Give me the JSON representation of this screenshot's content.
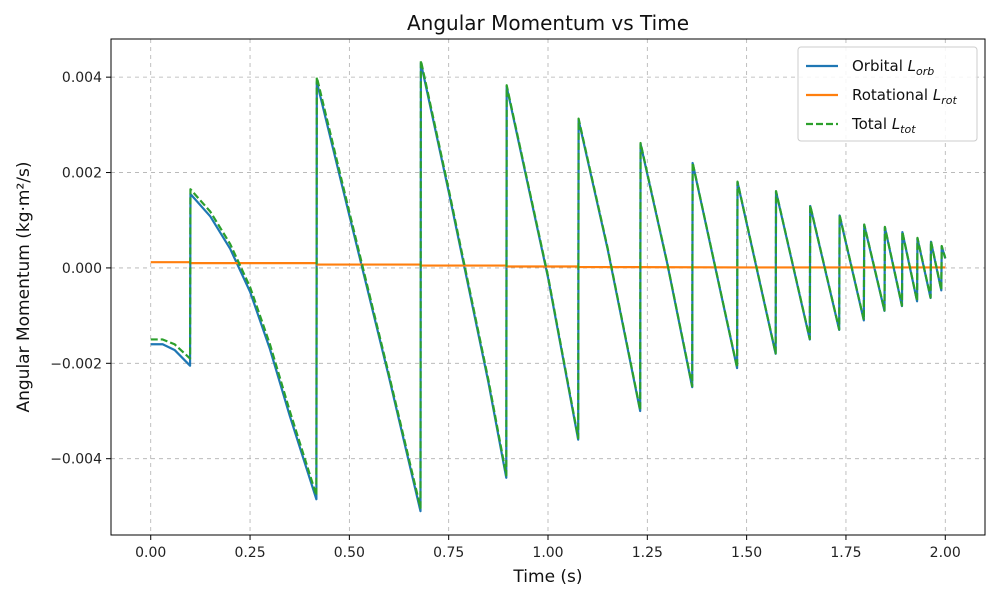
{
  "chart_data": {
    "type": "line",
    "title": "Angular Momentum vs Time",
    "xlabel": "Time (s)",
    "ylabel": "Angular Momentum (kg·m²/s)",
    "xlim": [
      -0.1,
      2.1
    ],
    "ylim": [
      -0.0056,
      0.0048
    ],
    "grid": true,
    "legend_position": "top-right",
    "x_ticks": [
      0,
      0.25,
      0.5,
      0.75,
      1.0,
      1.25,
      1.5,
      1.75,
      2.0
    ],
    "x_tick_labels": [
      "0.00",
      "0.25",
      "0.50",
      "0.75",
      "1.00",
      "1.25",
      "1.50",
      "1.75",
      "2.00"
    ],
    "y_ticks": [
      -0.004,
      -0.002,
      0.0,
      0.002,
      0.004
    ],
    "y_tick_labels": [
      "−0.004",
      "−0.002",
      "0.000",
      "0.002",
      "0.004"
    ],
    "series": [
      {
        "name": "Orbital L_orb",
        "label_main": "Orbital ",
        "label_symbol": "L",
        "label_sub": "orb",
        "color": "#1f77b4",
        "style": "solid",
        "x": [
          0.0,
          0.03,
          0.06,
          0.099,
          0.1,
          0.15,
          0.2,
          0.25,
          0.3,
          0.35,
          0.417,
          0.418,
          0.5,
          0.6,
          0.679,
          0.68,
          0.75,
          0.85,
          0.895,
          0.896,
          1.0,
          1.076,
          1.077,
          1.15,
          1.232,
          1.233,
          1.3,
          1.363,
          1.364,
          1.476,
          1.477,
          1.573,
          1.574,
          1.659,
          1.66,
          1.733,
          1.734,
          1.795,
          1.796,
          1.847,
          1.848,
          1.891,
          1.892,
          1.929,
          1.93,
          1.963,
          1.964,
          1.99,
          1.991,
          2.0
        ],
        "y": [
          -0.0016,
          -0.0016,
          -0.00172,
          -0.00205,
          0.00155,
          0.00108,
          0.0004,
          -0.0005,
          -0.0017,
          -0.0031,
          -0.00485,
          0.0039,
          0.0011,
          -0.0023,
          -0.0051,
          0.0043,
          0.0016,
          -0.0024,
          -0.0044,
          0.0038,
          -0.0002,
          -0.0036,
          0.0031,
          0.0004,
          -0.003,
          0.0026,
          0.0001,
          -0.0025,
          0.0022,
          -0.0021,
          0.0018,
          -0.0018,
          0.0016,
          -0.0015,
          0.0013,
          -0.0013,
          0.0011,
          -0.0011,
          0.0009,
          -0.0009,
          0.00085,
          -0.0008,
          0.00075,
          -0.0007,
          0.00062,
          -0.00063,
          0.00055,
          -0.00047,
          0.00045,
          0.0002
        ]
      },
      {
        "name": "Rotational L_rot",
        "label_main": "Rotational ",
        "label_symbol": "L",
        "label_sub": "rot",
        "color": "#ff7f0e",
        "style": "solid",
        "x": [
          0.0,
          0.099,
          0.1,
          0.417,
          0.418,
          0.679,
          0.68,
          0.895,
          0.896,
          1.076,
          1.077,
          1.5,
          2.0
        ],
        "y": [
          0.00012,
          0.00012,
          0.0001,
          0.0001,
          7e-05,
          7e-05,
          5e-05,
          5e-05,
          3e-05,
          3e-05,
          2e-05,
          1e-05,
          1e-05
        ]
      },
      {
        "name": "Total L_tot",
        "label_main": "Total ",
        "label_symbol": "L",
        "label_sub": "tot",
        "color": "#2ca02c",
        "style": "dashed",
        "x": [
          0.0,
          0.03,
          0.06,
          0.099,
          0.1,
          0.15,
          0.2,
          0.25,
          0.3,
          0.35,
          0.417,
          0.418,
          0.5,
          0.6,
          0.679,
          0.68,
          0.75,
          0.85,
          0.895,
          0.896,
          1.0,
          1.076,
          1.077,
          1.15,
          1.232,
          1.233,
          1.3,
          1.363,
          1.364,
          1.476,
          1.477,
          1.573,
          1.574,
          1.659,
          1.66,
          1.733,
          1.734,
          1.795,
          1.796,
          1.847,
          1.848,
          1.891,
          1.892,
          1.929,
          1.93,
          1.963,
          1.964,
          1.99,
          1.991,
          2.0
        ],
        "y": [
          -0.0015,
          -0.0015,
          -0.0016,
          -0.0019,
          0.00165,
          0.00118,
          0.0005,
          -0.0004,
          -0.0016,
          -0.003,
          -0.00477,
          0.004,
          0.00117,
          -0.00225,
          -0.00503,
          0.00435,
          0.00165,
          -0.00235,
          -0.00435,
          0.00383,
          -0.00017,
          -0.00357,
          0.00313,
          0.00042,
          -0.00298,
          0.00262,
          0.00011,
          -0.00248,
          0.00221,
          -0.00209,
          0.00181,
          -0.00179,
          0.00161,
          -0.00149,
          0.00131,
          -0.00129,
          0.00111,
          -0.00109,
          0.00091,
          -0.00089,
          0.00086,
          -0.00079,
          0.00076,
          -0.00069,
          0.00063,
          -0.00062,
          0.00056,
          -0.00046,
          0.00046,
          0.00021
        ]
      }
    ]
  }
}
